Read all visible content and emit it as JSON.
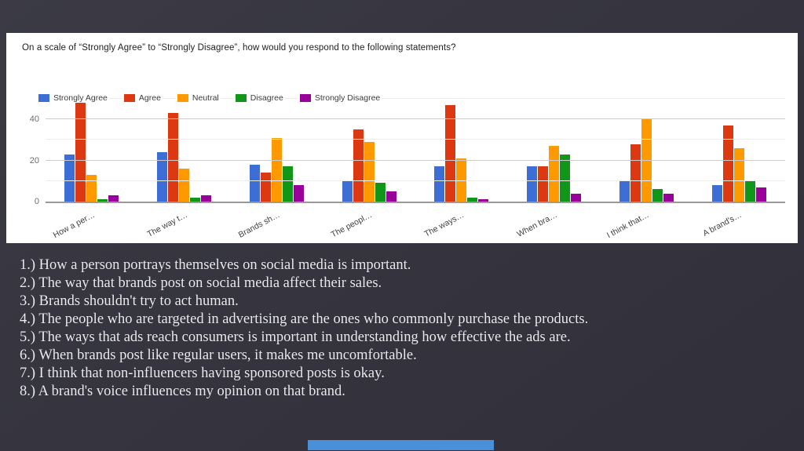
{
  "chart_data": {
    "type": "bar",
    "title": "On a scale of “Strongly Agree” to “Strongly Disagree”, how would you respond to the following statements?",
    "categories": [
      "How a per…",
      "The way t…",
      "Brands sh…",
      "The peopl…",
      "The ways…",
      "When bra…",
      "I think that…",
      "A brand's…"
    ],
    "series": [
      {
        "name": "Strongly Agree",
        "color": "#3c6ed5",
        "values": [
          23,
          24,
          18,
          10,
          17,
          17,
          10,
          8
        ]
      },
      {
        "name": "Agree",
        "color": "#dc3912",
        "values": [
          48,
          43,
          14,
          35,
          47,
          17,
          28,
          37
        ]
      },
      {
        "name": "Neutral",
        "color": "#ff9900",
        "values": [
          13,
          16,
          31,
          29,
          21,
          27,
          40,
          26
        ]
      },
      {
        "name": "Disagree",
        "color": "#109618",
        "values": [
          1,
          2,
          17,
          9,
          2,
          23,
          6,
          10
        ]
      },
      {
        "name": "Strongly Disagree",
        "color": "#990099",
        "values": [
          3,
          3,
          8,
          5,
          1,
          4,
          4,
          7
        ]
      }
    ],
    "ylim": [
      0,
      50
    ],
    "yticks": [
      0,
      20,
      40
    ],
    "grid": true,
    "legend_position": "top",
    "xlabel": "",
    "ylabel": ""
  },
  "statements": [
    "1.) How a person portrays themselves on social media is important.",
    "2.) The way that brands post on social media affect their sales.",
    "3.) Brands shouldn't try to act human.",
    "4.) The people who are targeted in advertising are the ones who commonly purchase the products.",
    "5.) The ways that ads reach consumers is important in understanding how effective the ads are.",
    "6.) When brands post like regular users, it makes me uncomfortable.",
    "7.) I think that non-influencers having sponsored posts is okay.",
    "8.) A brand's voice influences my opinion on that brand."
  ],
  "colors": {
    "slide_background": "#37363f",
    "card_background": "#ffffff",
    "accent_bar": "#4a90d9",
    "axis_line": "#9a9a9a",
    "gridline_major": "#cccccc",
    "gridline_minor": "#ececec"
  }
}
